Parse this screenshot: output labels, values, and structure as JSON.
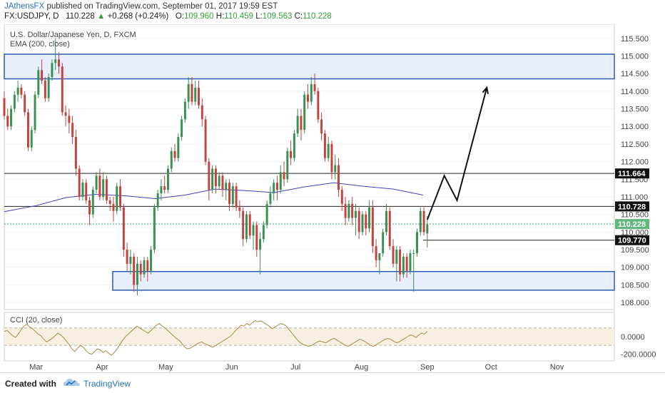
{
  "header": {
    "author": "JAthensFX",
    "published_text": "published on TradingView.com, September 01, 2017 19:59 EST",
    "symbol_line": "FX:USDJPY, D",
    "last_price": "110.228",
    "change_arrow": "▲",
    "change": "+0.268 (+0.24%)",
    "o_label": "O:",
    "o_value": "109.960",
    "h_label": "H:",
    "h_value": "110.459",
    "l_label": "L:",
    "l_value": "109.563",
    "c_label": "C:",
    "c_value": "110.228"
  },
  "footer": {
    "created_with": "Created with",
    "brand": "TradingView"
  },
  "colors": {
    "up_candle": "#3a8f53",
    "down_candle": "#c4423f",
    "ema": "#3f3fc4",
    "zone_fill": "#e8eefb",
    "zone_border": "#2d5ab8",
    "cci": "#a98a4a",
    "cci_band": "#f7efe2",
    "accent_text": "#32a335",
    "brand_blue": "#2a73c0"
  },
  "chart_data": [
    {
      "type": "candlestick",
      "title": "U.S. Dollar/Japanese Yen, D, FXCM",
      "indicator_label": "EMA (200, close)",
      "price_axis": {
        "ticks": [
          "115.500",
          "115.000",
          "114.500",
          "114.000",
          "113.500",
          "113.000",
          "112.500",
          "112.000",
          "111.500",
          "111.000",
          "110.500",
          "110.000",
          "109.500",
          "109.000",
          "108.500",
          "108.000"
        ],
        "range": [
          107.8,
          115.9
        ]
      },
      "time_axis": {
        "labels": [
          "Mar",
          "Apr",
          "May",
          "Jun",
          "Jul",
          "Aug",
          "Sep",
          "Oct",
          "Nov"
        ]
      },
      "price_labels": [
        {
          "text": "111.664",
          "value": 111.664,
          "style": "dark"
        },
        {
          "text": "110.728",
          "value": 110.728,
          "style": "dark"
        },
        {
          "text": "110.228",
          "value": 110.228,
          "style": "green"
        },
        {
          "text": "109.770",
          "value": 109.77,
          "style": "dark"
        }
      ],
      "horizontal_lines": [
        111.664,
        110.728,
        109.77
      ],
      "zones": [
        {
          "name": "resistance-zone",
          "from_date": "2017-02-14",
          "to_date": "2017-11-28",
          "low": 114.35,
          "high": 115.05
        },
        {
          "name": "support-zone",
          "from_date": "2017-04-06",
          "to_date": "2017-11-28",
          "low": 108.35,
          "high": 108.88
        }
      ],
      "projection_path": [
        {
          "date": "2017-09-01",
          "price": 110.35
        },
        {
          "date": "2017-09-09",
          "price": 111.6
        },
        {
          "date": "2017-09-15",
          "price": 110.9
        },
        {
          "date": "2017-09-29",
          "price": 114.1
        }
      ],
      "ohlc_daily": [
        [
          113.8,
          114.0,
          113.2,
          113.3
        ],
        [
          113.3,
          113.5,
          112.9,
          113.0
        ],
        [
          113.0,
          113.6,
          112.9,
          113.5
        ],
        [
          113.5,
          114.0,
          113.4,
          113.9
        ],
        [
          113.9,
          114.3,
          113.7,
          114.1
        ],
        [
          114.1,
          114.2,
          113.8,
          113.9
        ],
        [
          113.9,
          114.0,
          113.3,
          113.4
        ],
        [
          113.4,
          113.5,
          112.3,
          112.4
        ],
        [
          112.4,
          113.0,
          112.3,
          112.9
        ],
        [
          112.9,
          114.0,
          112.8,
          113.9
        ],
        [
          113.9,
          114.7,
          113.8,
          114.6
        ],
        [
          114.6,
          114.9,
          114.2,
          114.3
        ],
        [
          114.3,
          114.4,
          113.7,
          113.8
        ],
        [
          113.8,
          114.5,
          113.7,
          114.4
        ],
        [
          114.4,
          114.9,
          114.3,
          114.8
        ],
        [
          114.8,
          115.5,
          114.6,
          114.9
        ],
        [
          114.9,
          115.1,
          114.5,
          114.7
        ],
        [
          114.7,
          114.8,
          113.3,
          113.4
        ],
        [
          113.4,
          113.6,
          113.0,
          113.3
        ],
        [
          113.3,
          113.5,
          112.8,
          113.1
        ],
        [
          113.1,
          113.3,
          112.5,
          112.7
        ],
        [
          112.7,
          112.9,
          111.6,
          111.8
        ],
        [
          111.8,
          111.9,
          110.9,
          111.0
        ],
        [
          111.0,
          111.5,
          110.9,
          111.4
        ],
        [
          111.4,
          111.5,
          110.8,
          110.9
        ],
        [
          110.9,
          111.0,
          110.2,
          110.5
        ],
        [
          110.5,
          111.3,
          110.4,
          111.2
        ],
        [
          111.2,
          111.7,
          111.1,
          111.6
        ],
        [
          111.6,
          111.8,
          110.9,
          111.0
        ],
        [
          111.0,
          111.7,
          110.9,
          111.5
        ],
        [
          111.5,
          111.6,
          110.8,
          110.9
        ],
        [
          110.9,
          111.0,
          110.6,
          110.8
        ],
        [
          110.8,
          111.0,
          110.3,
          110.6
        ],
        [
          110.6,
          111.4,
          110.5,
          111.3
        ],
        [
          111.3,
          111.5,
          110.6,
          110.7
        ],
        [
          110.7,
          110.8,
          109.3,
          109.5
        ],
        [
          109.5,
          109.7,
          108.9,
          109.1
        ],
        [
          109.1,
          109.5,
          108.8,
          109.3
        ],
        [
          109.3,
          109.4,
          108.3,
          108.5
        ],
        [
          108.5,
          109.3,
          108.2,
          109.1
        ],
        [
          109.1,
          109.2,
          108.6,
          108.8
        ],
        [
          108.8,
          109.3,
          108.7,
          109.2
        ],
        [
          109.2,
          109.3,
          108.6,
          108.9
        ],
        [
          108.9,
          109.6,
          108.8,
          109.5
        ],
        [
          109.5,
          110.8,
          109.4,
          110.7
        ],
        [
          110.7,
          111.2,
          110.6,
          111.1
        ],
        [
          111.1,
          111.5,
          110.9,
          111.3
        ],
        [
          111.3,
          111.6,
          111.1,
          111.2
        ],
        [
          111.2,
          111.9,
          111.1,
          111.8
        ],
        [
          111.8,
          112.4,
          111.7,
          112.3
        ],
        [
          112.3,
          112.5,
          112.0,
          112.1
        ],
        [
          112.1,
          112.8,
          112.0,
          112.7
        ],
        [
          112.7,
          113.3,
          112.6,
          113.2
        ],
        [
          113.2,
          113.8,
          113.1,
          113.7
        ],
        [
          113.7,
          114.4,
          113.5,
          114.2
        ],
        [
          114.2,
          114.4,
          113.6,
          113.7
        ],
        [
          113.7,
          114.3,
          113.6,
          114.1
        ],
        [
          114.1,
          114.3,
          113.5,
          113.6
        ],
        [
          113.6,
          113.8,
          113.0,
          113.2
        ],
        [
          113.2,
          113.3,
          111.9,
          112.0
        ],
        [
          112.0,
          112.1,
          110.9,
          111.2
        ],
        [
          111.2,
          111.9,
          111.1,
          111.8
        ],
        [
          111.8,
          111.9,
          111.1,
          111.3
        ],
        [
          111.3,
          111.7,
          111.2,
          111.6
        ],
        [
          111.6,
          111.7,
          111.0,
          111.2
        ],
        [
          111.2,
          111.5,
          110.9,
          111.4
        ],
        [
          111.4,
          111.5,
          110.6,
          110.8
        ],
        [
          110.8,
          111.4,
          110.7,
          111.3
        ],
        [
          111.3,
          111.4,
          110.6,
          110.7
        ],
        [
          110.7,
          110.9,
          110.4,
          110.6
        ],
        [
          110.6,
          110.7,
          109.6,
          109.8
        ],
        [
          109.8,
          110.6,
          109.7,
          110.5
        ],
        [
          110.5,
          110.6,
          109.8,
          109.9
        ],
        [
          109.9,
          110.3,
          109.5,
          110.2
        ],
        [
          110.2,
          110.3,
          109.3,
          109.5
        ],
        [
          109.5,
          110.0,
          108.8,
          109.8
        ],
        [
          109.8,
          110.3,
          109.7,
          110.2
        ],
        [
          110.2,
          110.9,
          110.1,
          110.8
        ],
        [
          110.8,
          111.3,
          110.7,
          111.1
        ],
        [
          111.1,
          111.5,
          110.9,
          111.4
        ],
        [
          111.4,
          111.6,
          110.9,
          111.2
        ],
        [
          111.2,
          111.9,
          111.1,
          111.7
        ],
        [
          111.7,
          112.0,
          111.3,
          111.5
        ],
        [
          111.5,
          112.4,
          111.4,
          112.3
        ],
        [
          112.3,
          112.6,
          111.9,
          112.1
        ],
        [
          112.1,
          112.9,
          112.0,
          112.8
        ],
        [
          112.8,
          113.5,
          112.7,
          113.3
        ],
        [
          113.3,
          113.5,
          112.6,
          112.9
        ],
        [
          112.9,
          114.0,
          112.8,
          113.9
        ],
        [
          113.9,
          114.2,
          113.5,
          113.7
        ],
        [
          113.7,
          114.4,
          113.6,
          114.2
        ],
        [
          114.2,
          114.5,
          113.9,
          114.0
        ],
        [
          114.0,
          114.1,
          113.1,
          113.2
        ],
        [
          113.2,
          113.4,
          112.6,
          112.8
        ],
        [
          112.8,
          112.9,
          112.0,
          112.1
        ],
        [
          112.1,
          112.7,
          112.0,
          112.5
        ],
        [
          112.5,
          112.6,
          111.5,
          111.7
        ],
        [
          111.7,
          112.2,
          111.5,
          111.9
        ],
        [
          111.9,
          112.1,
          111.0,
          111.2
        ],
        [
          111.2,
          111.3,
          110.6,
          110.8
        ],
        [
          110.8,
          111.0,
          110.2,
          110.4
        ],
        [
          110.4,
          110.9,
          110.3,
          110.8
        ],
        [
          110.8,
          111.0,
          110.2,
          110.4
        ],
        [
          110.4,
          110.8,
          109.9,
          110.6
        ],
        [
          110.6,
          110.7,
          109.8,
          110.0
        ],
        [
          110.0,
          110.6,
          109.9,
          110.5
        ],
        [
          110.5,
          110.6,
          109.9,
          110.1
        ],
        [
          110.1,
          110.9,
          110.0,
          110.7
        ],
        [
          110.7,
          110.9,
          109.4,
          109.6
        ],
        [
          109.6,
          109.8,
          109.0,
          109.2
        ],
        [
          109.2,
          109.4,
          108.8,
          109.4
        ],
        [
          109.4,
          110.1,
          109.3,
          110.0
        ],
        [
          110.0,
          110.8,
          109.9,
          110.6
        ],
        [
          110.6,
          110.7,
          109.5,
          109.6
        ],
        [
          109.6,
          109.8,
          109.0,
          109.1
        ],
        [
          109.1,
          109.6,
          108.6,
          109.5
        ],
        [
          109.5,
          109.6,
          108.6,
          108.8
        ],
        [
          108.8,
          109.4,
          108.7,
          109.3
        ],
        [
          109.3,
          109.4,
          108.7,
          108.9
        ],
        [
          108.9,
          109.5,
          108.8,
          109.4
        ],
        [
          109.4,
          109.5,
          108.3,
          109.4
        ],
        [
          109.4,
          110.1,
          109.3,
          110.0
        ],
        [
          110.0,
          110.7,
          109.9,
          110.6
        ],
        [
          110.6,
          110.7,
          109.9,
          110.0
        ],
        [
          109.96,
          110.459,
          109.563,
          110.228
        ]
      ],
      "ema_points": [
        {
          "date": "2017-02-14",
          "value": 110.58
        },
        {
          "date": "2017-03-01",
          "value": 110.75
        },
        {
          "date": "2017-03-15",
          "value": 110.98
        },
        {
          "date": "2017-03-29",
          "value": 111.07
        },
        {
          "date": "2017-04-12",
          "value": 111.03
        },
        {
          "date": "2017-04-26",
          "value": 110.95
        },
        {
          "date": "2017-05-10",
          "value": 111.05
        },
        {
          "date": "2017-05-24",
          "value": 111.22
        },
        {
          "date": "2017-06-07",
          "value": 111.18
        },
        {
          "date": "2017-06-21",
          "value": 111.12
        },
        {
          "date": "2017-07-05",
          "value": 111.28
        },
        {
          "date": "2017-07-19",
          "value": 111.4
        },
        {
          "date": "2017-08-02",
          "value": 111.3
        },
        {
          "date": "2017-08-16",
          "value": 111.22
        },
        {
          "date": "2017-08-30",
          "value": 111.05
        }
      ]
    },
    {
      "type": "line",
      "title": "CCI (20, close)",
      "axis_ticks": [
        "0.0000",
        "-200.0000"
      ],
      "range": [
        -260,
        260
      ],
      "band": [
        -100,
        100
      ],
      "values": [
        60,
        70,
        40,
        10,
        -10,
        30,
        80,
        120,
        140,
        110,
        90,
        60,
        30,
        10,
        -30,
        -60,
        -40,
        -20,
        10,
        40,
        20,
        -10,
        -50,
        -90,
        -140,
        -170,
        -130,
        -100,
        -120,
        -160,
        -190,
        -200,
        -170,
        -140,
        -150,
        -180,
        -160,
        -190,
        -210,
        -180,
        -140,
        -90,
        -40,
        0,
        30,
        60,
        90,
        120,
        100,
        80,
        60,
        40,
        70,
        100,
        130,
        150,
        120,
        100,
        70,
        40,
        10,
        -20,
        -40,
        -80,
        -120,
        -140,
        -130,
        -110,
        -90,
        -70,
        -60,
        -80,
        -90,
        -110,
        -120,
        -100,
        -80,
        -60,
        -40,
        -20,
        0,
        30,
        70,
        100,
        130,
        120,
        150,
        130,
        160,
        180,
        170,
        180,
        160,
        140,
        120,
        90,
        110,
        130,
        150,
        140,
        120,
        80,
        40,
        0,
        -40,
        -70,
        -90,
        -100,
        -110,
        -100,
        -80,
        -60,
        -50,
        -60,
        -70,
        -50,
        -30,
        -20,
        -40,
        -60,
        -80,
        -100,
        -110,
        -90,
        -70,
        -50,
        -30,
        -40,
        -60,
        -80,
        -100,
        -110,
        -90,
        -70,
        -50,
        -30,
        -20,
        -30,
        -50,
        -70,
        -60,
        -40,
        -20,
        0,
        20,
        10,
        -10,
        20,
        40,
        30,
        60
      ]
    }
  ]
}
